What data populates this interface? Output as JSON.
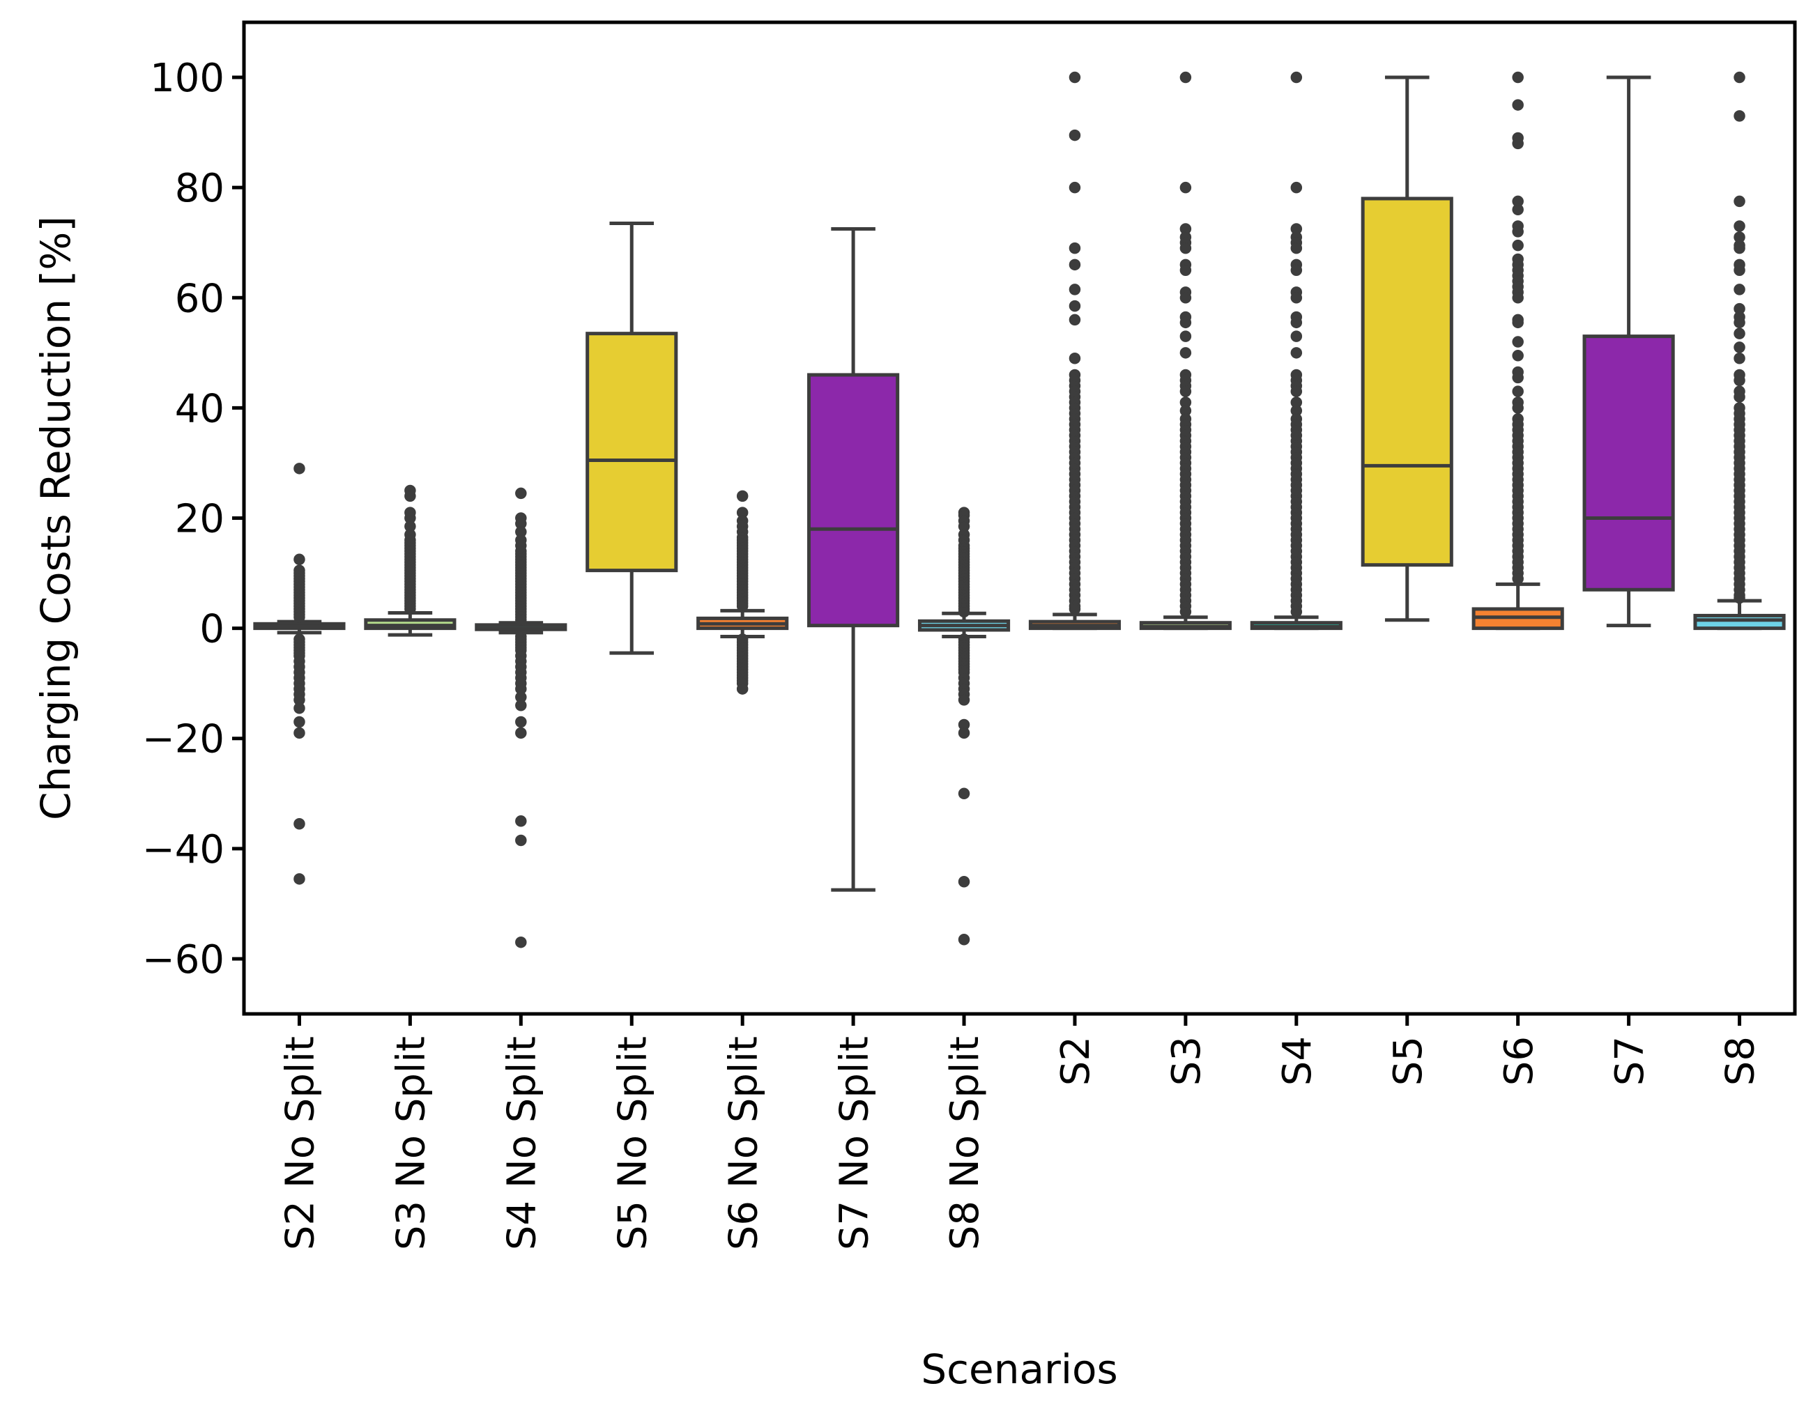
{
  "chart_data": {
    "type": "box",
    "title": "",
    "xlabel": "Scenarios",
    "ylabel": "Charging Costs Reduction [%]",
    "ylim": [
      -70,
      110
    ],
    "yticks": [
      100,
      80,
      60,
      40,
      20,
      0,
      -20,
      -40,
      -60
    ],
    "ytick_labels": [
      "100",
      "80",
      "60",
      "40",
      "20",
      "0",
      "−20",
      "−40",
      "−60"
    ],
    "grid": false,
    "legend": "none",
    "boxes": [
      {
        "label": "S2 No Split",
        "color": "#f58231",
        "whisker_low": -0.8,
        "q1": 0.0,
        "median": 0.3,
        "q3": 0.8,
        "whisker_high": 1.2,
        "outliers": [
          29,
          12.5,
          10.5,
          10,
          9.5,
          9,
          8.5,
          8,
          7.5,
          7,
          6.5,
          6,
          5.5,
          5,
          4.5,
          4,
          3.5,
          3,
          2.5,
          2,
          -2,
          -2.5,
          -3,
          -3.5,
          -4,
          -4.5,
          -5,
          -6,
          -7,
          -8,
          -9,
          -10,
          -11,
          -12,
          -13,
          -14.5,
          -17,
          -19,
          -35.5,
          -45.5
        ]
      },
      {
        "label": "S3 No Split",
        "color": "#b5dc8c",
        "whisker_low": -1.2,
        "q1": 0.0,
        "median": 0.5,
        "q3": 1.5,
        "whisker_high": 2.8,
        "outliers": [
          25,
          24,
          21,
          20,
          18.5,
          17,
          16,
          15.5,
          15,
          14.5,
          14,
          13.5,
          13,
          12.5,
          12,
          11.5,
          11,
          10.5,
          10,
          9.5,
          9,
          8.5,
          8,
          7.5,
          7,
          6.5,
          6,
          5.5,
          5,
          4.5,
          4,
          3.5
        ]
      },
      {
        "label": "S4 No Split",
        "color": "#22d2b4",
        "whisker_low": -0.8,
        "q1": -0.2,
        "median": 0.0,
        "q3": 0.6,
        "whisker_high": 1.0,
        "outliers": [
          24.5,
          20,
          19,
          17.5,
          16,
          15,
          14,
          13.5,
          13,
          12.5,
          12,
          11.5,
          11,
          10.5,
          10,
          9.5,
          9,
          8.5,
          8,
          7.5,
          7,
          6.5,
          6,
          5.5,
          5,
          4.5,
          4,
          3.5,
          3,
          2.5,
          2,
          1.5,
          -1.5,
          -2,
          -2.5,
          -3,
          -3.5,
          -4,
          -5,
          -6,
          -7,
          -8,
          -9,
          -10,
          -11,
          -12.5,
          -14,
          -17,
          -19,
          -35,
          -38.5,
          -57
        ]
      },
      {
        "label": "S5 No Split",
        "color": "#e6cd32",
        "whisker_low": -4.5,
        "q1": 10.5,
        "median": 30.5,
        "q3": 53.5,
        "whisker_high": 73.5,
        "outliers": []
      },
      {
        "label": "S6 No Split",
        "color": "#f58231",
        "whisker_low": -1.5,
        "q1": 0.0,
        "median": 0.8,
        "q3": 1.8,
        "whisker_high": 3.2,
        "outliers": [
          24,
          21,
          19.5,
          18.5,
          17.5,
          16.5,
          16,
          15.5,
          15,
          14.5,
          14,
          13.5,
          13,
          12.5,
          12,
          11.5,
          11,
          10.5,
          10,
          9.5,
          9,
          8.5,
          8,
          7.5,
          7,
          6.5,
          6,
          5.5,
          5,
          4.5,
          4,
          -2,
          -2.5,
          -3,
          -3.5,
          -4,
          -4.5,
          -5,
          -5.5,
          -6,
          -6.5,
          -7,
          -7.5,
          -8,
          -8.5,
          -9,
          -9.5,
          -10,
          -11
        ]
      },
      {
        "label": "S7 No Split",
        "color": "#8c28aa",
        "whisker_low": -47.5,
        "q1": 0.5,
        "median": 18.0,
        "q3": 46.0,
        "whisker_high": 72.5,
        "outliers": []
      },
      {
        "label": "S8 No Split",
        "color": "#6ed2e6",
        "whisker_low": -1.5,
        "q1": -0.3,
        "median": 0.5,
        "q3": 1.3,
        "whisker_high": 2.7,
        "outliers": [
          21,
          20.5,
          19.5,
          18.5,
          17,
          16,
          15,
          14.5,
          14,
          13.5,
          13,
          12.5,
          12,
          11.5,
          11,
          10.5,
          10,
          9.5,
          9,
          8.5,
          8,
          7.5,
          7,
          6.5,
          6,
          5.5,
          5,
          4.5,
          4,
          3.5,
          3,
          -2,
          -2.5,
          -3,
          -3.5,
          -4,
          -4.5,
          -5,
          -5.5,
          -6,
          -6.5,
          -7,
          -7.5,
          -8,
          -9,
          -10,
          -11,
          -12,
          -13,
          -17.5,
          -19,
          -30,
          -46,
          -56.5
        ]
      },
      {
        "label": "S2",
        "color": "#f58231",
        "whisker_low": 0.0,
        "q1": 0.0,
        "median": 0.5,
        "q3": 1.2,
        "whisker_high": 2.5,
        "outliers": [
          100,
          89.5,
          80,
          69,
          66,
          61.5,
          58.5,
          56,
          49,
          46,
          45,
          44,
          43,
          42,
          41,
          40,
          39,
          38,
          37,
          36,
          35,
          34,
          33,
          32,
          31,
          30,
          29,
          28,
          27,
          26,
          25,
          24,
          23,
          22,
          21,
          20,
          19,
          18,
          17,
          16,
          15,
          14,
          13,
          12,
          11,
          10,
          9,
          8,
          7,
          6,
          5,
          4,
          3.5
        ]
      },
      {
        "label": "S3",
        "color": "#b5dc8c",
        "whisker_low": 0.0,
        "q1": 0.0,
        "median": 0.3,
        "q3": 1.0,
        "whisker_high": 2.0,
        "outliers": [
          100,
          80,
          72.5,
          71,
          70,
          69,
          66,
          65,
          61,
          60,
          56.5,
          55.5,
          53,
          50,
          46,
          45,
          44,
          43,
          41,
          39.5,
          38,
          37,
          36,
          35,
          34,
          33,
          32,
          31,
          30,
          29,
          28,
          27,
          26,
          25,
          24,
          23,
          22,
          21,
          20,
          19,
          18,
          17,
          16,
          15,
          14,
          13,
          12,
          11,
          10,
          9,
          8,
          7,
          6,
          5,
          4,
          3
        ]
      },
      {
        "label": "S4",
        "color": "#22d2b4",
        "whisker_low": 0.0,
        "q1": 0.0,
        "median": 0.3,
        "q3": 1.0,
        "whisker_high": 2.0,
        "outliers": [
          100,
          80,
          72.5,
          71,
          70,
          69,
          66,
          65,
          61,
          60,
          56.5,
          55.5,
          53,
          50,
          46,
          45,
          44,
          43,
          41,
          39.5,
          38,
          37,
          36,
          35,
          34,
          33,
          32,
          31,
          30,
          29,
          28,
          27,
          26,
          25,
          24,
          23,
          22,
          21,
          20,
          19,
          18,
          17,
          16,
          15,
          14,
          13,
          12,
          11,
          10,
          9,
          8,
          7,
          6,
          5,
          4,
          3
        ]
      },
      {
        "label": "S5",
        "color": "#e6cd32",
        "whisker_low": 1.5,
        "q1": 11.5,
        "median": 29.5,
        "q3": 78.0,
        "whisker_high": 100.0,
        "outliers": []
      },
      {
        "label": "S6",
        "color": "#f58231",
        "whisker_low": 0.0,
        "q1": 0.0,
        "median": 2.0,
        "q3": 3.5,
        "whisker_high": 8.0,
        "outliers": [
          100,
          95,
          89,
          88,
          77.5,
          76,
          73,
          72,
          69.5,
          67,
          66,
          65,
          64,
          63,
          62,
          61,
          60,
          56,
          55.5,
          52,
          49.5,
          46.5,
          45.5,
          43,
          41,
          40,
          38,
          37,
          36,
          35,
          34,
          33,
          32,
          31,
          30,
          29,
          28,
          27,
          26,
          25,
          24,
          23,
          22,
          21,
          20,
          19,
          18,
          17,
          16,
          15,
          14,
          13,
          12,
          11,
          10,
          9
        ]
      },
      {
        "label": "S7",
        "color": "#8c28aa",
        "whisker_low": 0.5,
        "q1": 7.0,
        "median": 20.0,
        "q3": 53.0,
        "whisker_high": 100.0,
        "outliers": []
      },
      {
        "label": "S8",
        "color": "#6ed2e6",
        "whisker_low": 0.0,
        "q1": 0.0,
        "median": 1.5,
        "q3": 2.3,
        "whisker_high": 5.0,
        "outliers": [
          100,
          93,
          77.5,
          73,
          71,
          69.5,
          69,
          66,
          65,
          61.5,
          58,
          56.5,
          55.5,
          53.5,
          51,
          49,
          46,
          45,
          43,
          42,
          40,
          39,
          38,
          37,
          36,
          35,
          34,
          33,
          32,
          31,
          30,
          29,
          28,
          27,
          26,
          25,
          24,
          23,
          22,
          21,
          20,
          19,
          18,
          17,
          16,
          15,
          14,
          13,
          12,
          11,
          10,
          9,
          8,
          7,
          6,
          5.5
        ]
      }
    ]
  }
}
